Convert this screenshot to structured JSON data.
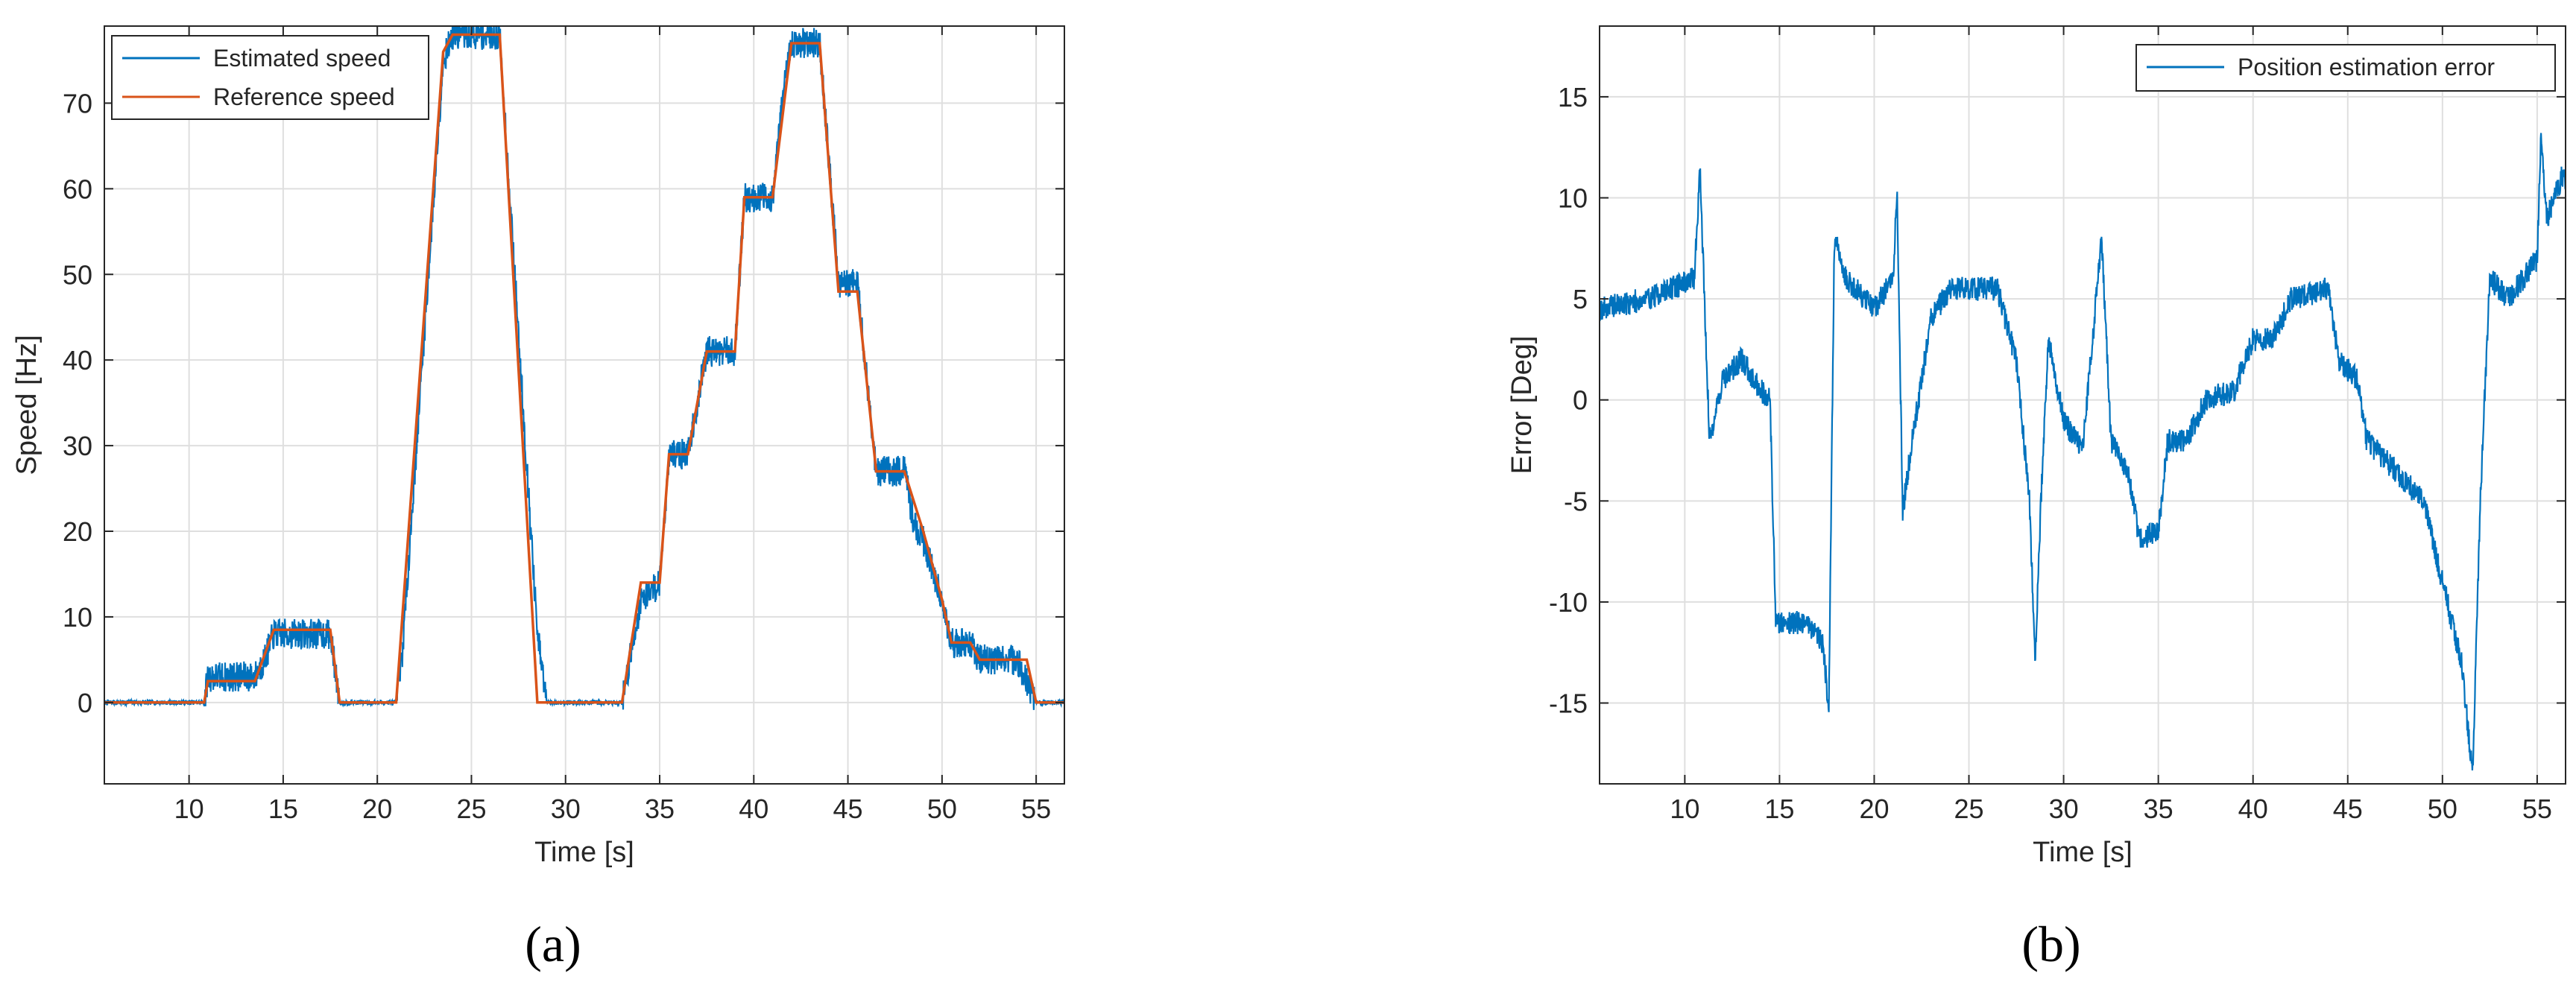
{
  "captions": [
    "(a)",
    "(b)"
  ],
  "chart_data": [
    {
      "type": "line",
      "xlabel": "Time [s]",
      "ylabel": "Speed [Hz]",
      "xlim": [
        5.5,
        56.5
      ],
      "ylim": [
        -9.5,
        79
      ],
      "xticks": [
        10,
        15,
        20,
        25,
        30,
        35,
        40,
        45,
        50,
        55
      ],
      "yticks": [
        0,
        10,
        20,
        30,
        40,
        50,
        60,
        70
      ],
      "grid": true,
      "legend_position": "top-left",
      "colors": {
        "estimated": "#0072BD",
        "reference": "#D95319"
      },
      "series": [
        {
          "name": "Estimated speed",
          "noise": 1.8,
          "points": [
            [
              5.5,
              0
            ],
            [
              10.8,
              0
            ],
            [
              11,
              3
            ],
            [
              13.5,
              3
            ],
            [
              14,
              5
            ],
            [
              14.5,
              8
            ],
            [
              17.5,
              8
            ],
            [
              18,
              0
            ],
            [
              21,
              0
            ],
            [
              21.3,
              5
            ],
            [
              23.5,
              75
            ],
            [
              24,
              78
            ],
            [
              26.5,
              78
            ],
            [
              28.5,
              8
            ],
            [
              29,
              0
            ],
            [
              33,
              0
            ],
            [
              34,
              12
            ],
            [
              35,
              14
            ],
            [
              35.5,
              29
            ],
            [
              36.5,
              29
            ],
            [
              37,
              35
            ],
            [
              37.5,
              41
            ],
            [
              39,
              41
            ],
            [
              39.5,
              59
            ],
            [
              41,
              59
            ],
            [
              41.5,
              70
            ],
            [
              42,
              77
            ],
            [
              43.5,
              77
            ],
            [
              44.5,
              49
            ],
            [
              45.5,
              49
            ],
            [
              46.5,
              27
            ],
            [
              48,
              27
            ],
            [
              48.5,
              21
            ],
            [
              49,
              19
            ],
            [
              50,
              12
            ],
            [
              50.5,
              7
            ],
            [
              51.5,
              7
            ],
            [
              52,
              5
            ],
            [
              54,
              5
            ],
            [
              55,
              0
            ],
            [
              56.5,
              0
            ]
          ]
        },
        {
          "name": "Reference speed",
          "noise": 0,
          "points": [
            [
              5.5,
              0
            ],
            [
              10.8,
              0
            ],
            [
              11,
              2.5
            ],
            [
              13.5,
              2.5
            ],
            [
              14.5,
              8.5
            ],
            [
              17.5,
              8.5
            ],
            [
              18,
              0
            ],
            [
              21,
              0
            ],
            [
              23.5,
              76
            ],
            [
              24,
              78
            ],
            [
              26.5,
              78
            ],
            [
              28.5,
              0
            ],
            [
              33,
              0
            ],
            [
              34,
              14
            ],
            [
              35,
              14
            ],
            [
              35.5,
              29
            ],
            [
              36.5,
              29
            ],
            [
              37.5,
              41
            ],
            [
              39,
              41
            ],
            [
              39.5,
              59
            ],
            [
              41,
              59
            ],
            [
              42,
              77
            ],
            [
              43.5,
              77
            ],
            [
              44.5,
              48
            ],
            [
              45.5,
              48
            ],
            [
              46.5,
              27
            ],
            [
              48,
              27
            ],
            [
              49,
              20
            ],
            [
              50,
              12
            ],
            [
              50.5,
              7
            ],
            [
              51.5,
              7
            ],
            [
              52,
              5
            ],
            [
              54.5,
              5
            ],
            [
              55,
              0
            ],
            [
              56.5,
              0
            ]
          ]
        }
      ]
    },
    {
      "type": "line",
      "xlabel": "Time [s]",
      "ylabel": "Error [Deg]",
      "xlim": [
        5.5,
        56.5
      ],
      "ylim": [
        -19,
        18.5
      ],
      "xticks": [
        10,
        15,
        20,
        25,
        30,
        35,
        40,
        45,
        50,
        55
      ],
      "yticks": [
        -15,
        -10,
        -5,
        0,
        5,
        10,
        15
      ],
      "grid": true,
      "legend_position": "top-right",
      "colors": {
        "error": "#0072BD"
      },
      "series": [
        {
          "name": "Position estimation error",
          "noise": 0.6,
          "points": [
            [
              5.5,
              4.5
            ],
            [
              8,
              5
            ],
            [
              10.5,
              6
            ],
            [
              10.8,
              11.5
            ],
            [
              11,
              6
            ],
            [
              11.3,
              -2
            ],
            [
              12,
              1
            ],
            [
              13,
              2
            ],
            [
              14,
              0.5
            ],
            [
              14.5,
              0
            ],
            [
              14.8,
              -11
            ],
            [
              15.5,
              -11
            ],
            [
              16.5,
              -11
            ],
            [
              17.3,
              -12
            ],
            [
              17.6,
              -15.5
            ],
            [
              17.9,
              8
            ],
            [
              18.5,
              6
            ],
            [
              20,
              4.5
            ],
            [
              21,
              6
            ],
            [
              21.2,
              10.5
            ],
            [
              21.5,
              -5.5
            ],
            [
              22,
              -2
            ],
            [
              23,
              4
            ],
            [
              24,
              5.5
            ],
            [
              26.5,
              5.5
            ],
            [
              27.5,
              2
            ],
            [
              28.2,
              -5
            ],
            [
              28.5,
              -13
            ],
            [
              28.8,
              -5
            ],
            [
              29.2,
              3
            ],
            [
              30,
              -1
            ],
            [
              31,
              -2.5
            ],
            [
              32,
              8
            ],
            [
              32.5,
              -2
            ],
            [
              33.5,
              -4
            ],
            [
              34,
              -7
            ],
            [
              35,
              -6.5
            ],
            [
              35.5,
              -2
            ],
            [
              36.5,
              -2
            ],
            [
              37.5,
              0
            ],
            [
              39,
              0.5
            ],
            [
              40,
              3
            ],
            [
              41,
              3
            ],
            [
              42,
              5
            ],
            [
              44,
              5.5
            ],
            [
              44.5,
              2
            ],
            [
              45.5,
              1
            ],
            [
              46,
              -2
            ],
            [
              47,
              -3
            ],
            [
              48,
              -4
            ],
            [
              49,
              -5
            ],
            [
              50,
              -9
            ],
            [
              51,
              -13
            ],
            [
              51.6,
              -18.5
            ],
            [
              52,
              -5
            ],
            [
              52.5,
              6
            ],
            [
              53.5,
              5
            ],
            [
              55,
              7
            ],
            [
              55.2,
              13
            ],
            [
              55.5,
              9
            ],
            [
              56.3,
              11
            ]
          ]
        }
      ]
    }
  ]
}
